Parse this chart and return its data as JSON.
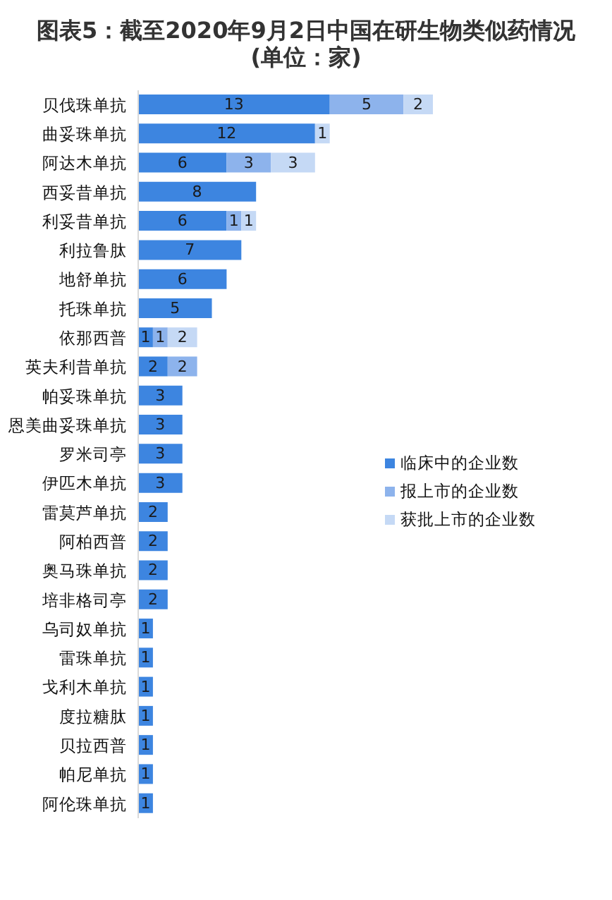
{
  "chart_data": {
    "type": "bar",
    "orientation": "horizontal",
    "stacked": true,
    "title": "图表5：截至2020年9月2日中国在研生物类似药情况",
    "subtitle": "(单位：家)",
    "categories": [
      "贝伐珠单抗",
      "曲妥珠单抗",
      "阿达木单抗",
      "西妥昔单抗",
      "利妥昔单抗",
      "利拉鲁肽",
      "地舒单抗",
      "托珠单抗",
      "依那西普",
      "英夫利昔单抗",
      "帕妥珠单抗",
      "恩美曲妥珠单抗",
      "罗米司亭",
      "伊匹木单抗",
      "雷莫芦单抗",
      "阿柏西普",
      "奥马珠单抗",
      "培非格司亭",
      "乌司奴单抗",
      "雷珠单抗",
      "戈利木单抗",
      "度拉糖肽",
      "贝拉西普",
      "帕尼单抗",
      "阿伦珠单抗"
    ],
    "series": [
      {
        "name": "临床中的企业数",
        "color": "#3d85e0",
        "values": [
          13,
          12,
          6,
          8,
          6,
          7,
          6,
          5,
          1,
          2,
          3,
          3,
          3,
          3,
          2,
          2,
          2,
          2,
          1,
          1,
          1,
          1,
          1,
          1,
          1
        ]
      },
      {
        "name": "报上市的企业数",
        "color": "#8db3ec",
        "values": [
          5,
          null,
          3,
          null,
          1,
          null,
          null,
          null,
          1,
          2,
          null,
          null,
          null,
          null,
          null,
          null,
          null,
          null,
          null,
          null,
          null,
          null,
          null,
          null,
          null
        ]
      },
      {
        "name": "获批上市的企业数",
        "color": "#c5d9f5",
        "values": [
          2,
          1,
          3,
          null,
          1,
          null,
          null,
          null,
          2,
          null,
          null,
          null,
          null,
          null,
          null,
          null,
          null,
          null,
          null,
          null,
          null,
          null,
          null,
          null,
          null
        ]
      }
    ],
    "xlim": [
      0,
      20
    ],
    "tick_labels": "y",
    "data_labels": true,
    "legend": "right"
  }
}
